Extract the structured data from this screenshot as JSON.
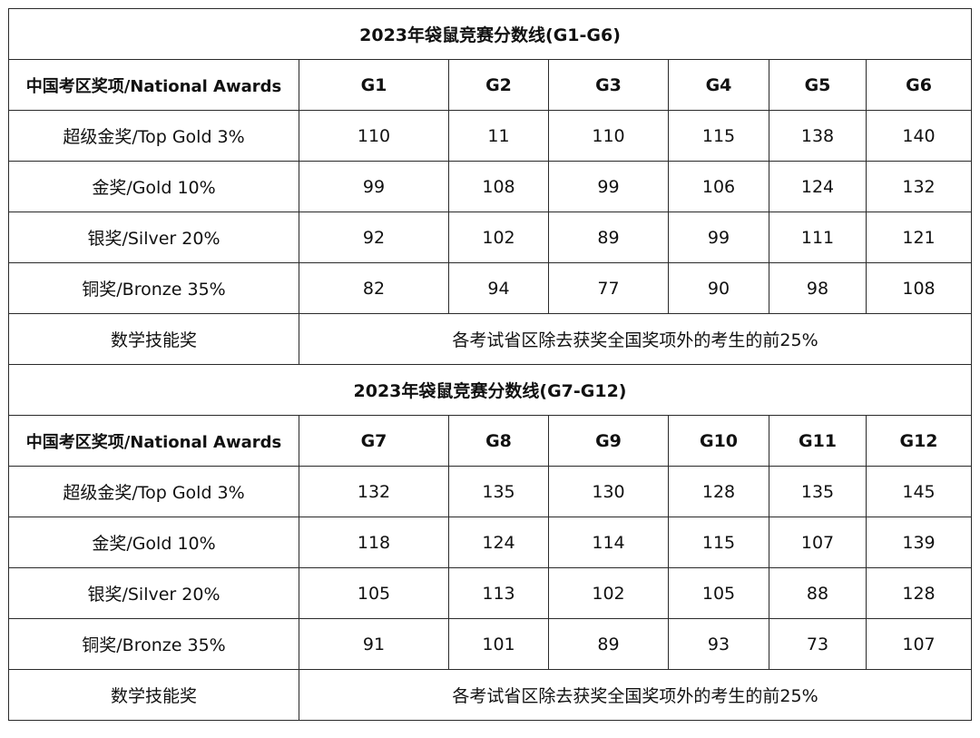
{
  "sections": [
    {
      "title": "2023年袋鼠竞赛分数线(G1-G6)",
      "header_label": "中国考区奖项/National Awards",
      "grades": [
        "G1",
        "G2",
        "G3",
        "G4",
        "G5",
        "G6"
      ],
      "rows": [
        {
          "award": "超级金奖/Top Gold 3%",
          "scores": [
            "110",
            "11",
            "110",
            "115",
            "138",
            "140"
          ]
        },
        {
          "award": "金奖/Gold 10%",
          "scores": [
            "99",
            "108",
            "99",
            "106",
            "124",
            "132"
          ]
        },
        {
          "award": "银奖/Silver 20%",
          "scores": [
            "92",
            "102",
            "89",
            "99",
            "111",
            "121"
          ]
        },
        {
          "award": "铜奖/Bronze 35%",
          "scores": [
            "82",
            "94",
            "77",
            "90",
            "98",
            "108"
          ]
        }
      ],
      "skill_award": {
        "label": "数学技能奖",
        "description": "各考试省区除去获奖全国奖项外的考生的前25%"
      }
    },
    {
      "title": "2023年袋鼠竞赛分数线(G7-G12)",
      "header_label": "中国考区奖项/National Awards",
      "grades": [
        "G7",
        "G8",
        "G9",
        "G10",
        "G11",
        "G12"
      ],
      "rows": [
        {
          "award": "超级金奖/Top Gold 3%",
          "scores": [
            "132",
            "135",
            "130",
            "128",
            "135",
            "145"
          ]
        },
        {
          "award": "金奖/Gold 10%",
          "scores": [
            "118",
            "124",
            "114",
            "115",
            "107",
            "139"
          ]
        },
        {
          "award": "银奖/Silver 20%",
          "scores": [
            "105",
            "113",
            "102",
            "105",
            "88",
            "128"
          ]
        },
        {
          "award": "铜奖/Bronze 35%",
          "scores": [
            "91",
            "101",
            "89",
            "93",
            "73",
            "107"
          ]
        }
      ],
      "skill_award": {
        "label": "数学技能奖",
        "description": "各考试省区除去获奖全国奖项外的考生的前25%"
      }
    }
  ]
}
